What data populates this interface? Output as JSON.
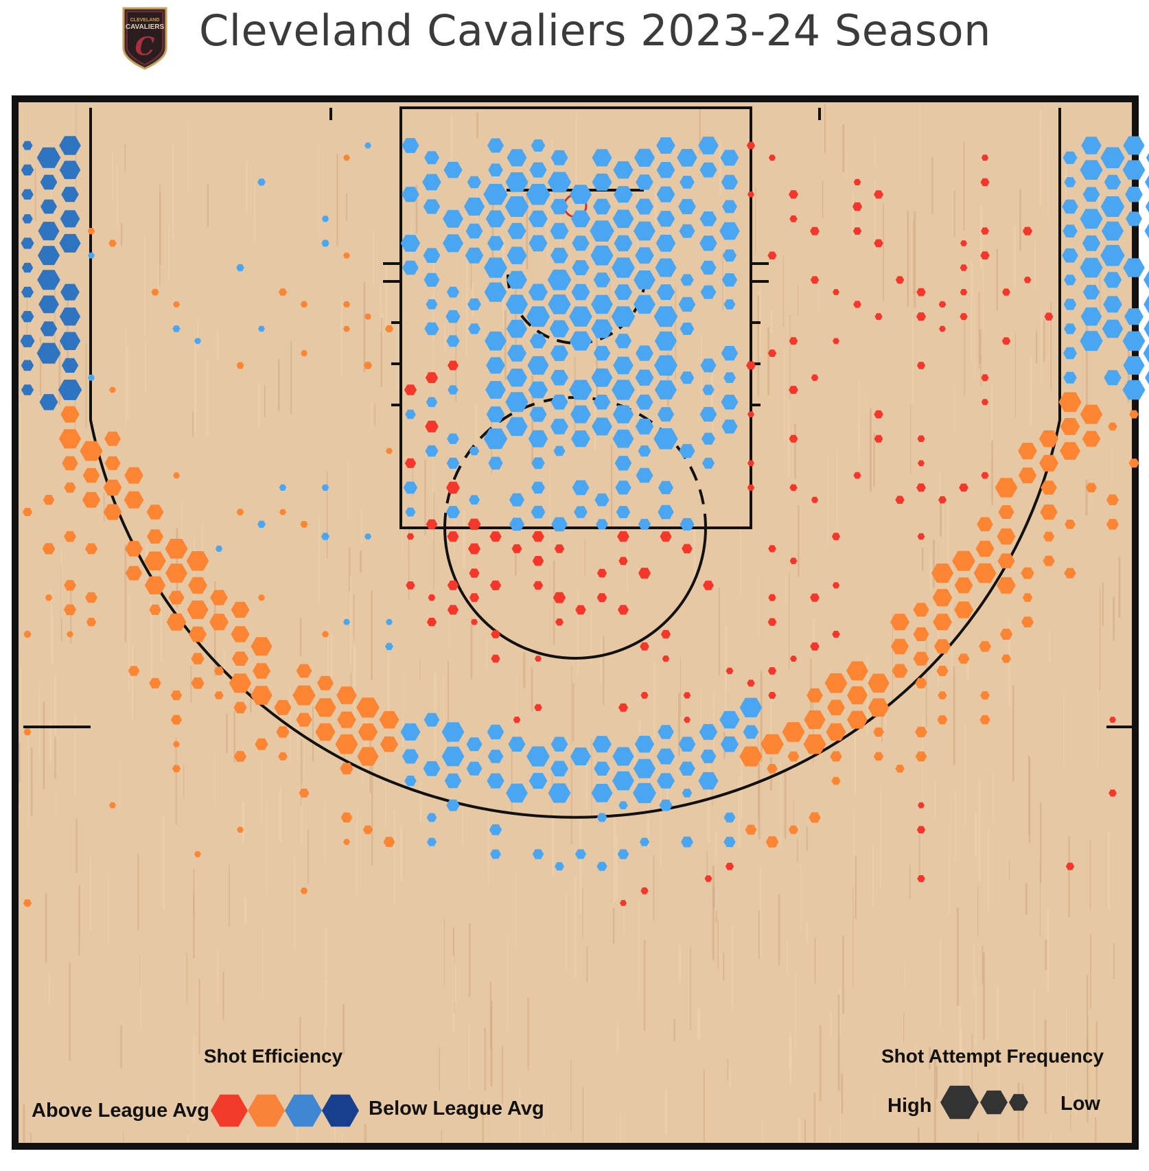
{
  "header": {
    "title": "Cleveland Cavaliers 2023-24 Season",
    "logo_text_line1": "CLEVELAND",
    "logo_text_line2": "CAVALIERS",
    "logo_letter": "C"
  },
  "colors": {
    "above_strong": "#f5362a",
    "above_mild": "#fb8533",
    "below_mild": "#4ba6f2",
    "below_strong": "#2f74c0",
    "legend_above_strong": "#f23a2b",
    "legend_above_mild": "#f98338",
    "legend_below_mild": "#3f87d2",
    "legend_below_strong": "#173f8d",
    "size_legend": "#333333",
    "court_wood": "#e6c7a2",
    "court_line": "#111111"
  },
  "legend": {
    "efficiency_title": "Shot Efficiency",
    "above_label": "Above League Avg",
    "below_label": "Below League Avg",
    "frequency_title": "Shot Attempt Frequency",
    "high_label": "High",
    "low_label": "Low"
  },
  "chart_data": {
    "type": "hexbin",
    "team": "Cleveland Cavaliers",
    "season": "2023-24",
    "encoding": {
      "color": "shot efficiency relative to league average",
      "size": "shot attempt frequency"
    },
    "color_scale": [
      "Above League Avg",
      "above_mild",
      "below_mild",
      "Below League Avg"
    ],
    "zones": [
      {
        "zone": "restricted area / paint",
        "efficiency": "below_mild",
        "frequency": "high"
      },
      {
        "zone": "paint sides (non-RA)",
        "efficiency": "above_strong",
        "frequency": "low"
      },
      {
        "zone": "mid-range",
        "efficiency": "above_strong",
        "frequency": "low"
      },
      {
        "zone": "left corner three",
        "efficiency": "below_strong",
        "frequency": "high"
      },
      {
        "zone": "right corner three",
        "efficiency": "below_mild",
        "frequency": "high"
      },
      {
        "zone": "left wing three",
        "efficiency": "above_mild",
        "frequency": "high"
      },
      {
        "zone": "right wing three",
        "efficiency": "above_mild",
        "frequency": "high"
      },
      {
        "zone": "top of key three",
        "efficiency": "below_mild",
        "frequency": "high"
      }
    ]
  }
}
